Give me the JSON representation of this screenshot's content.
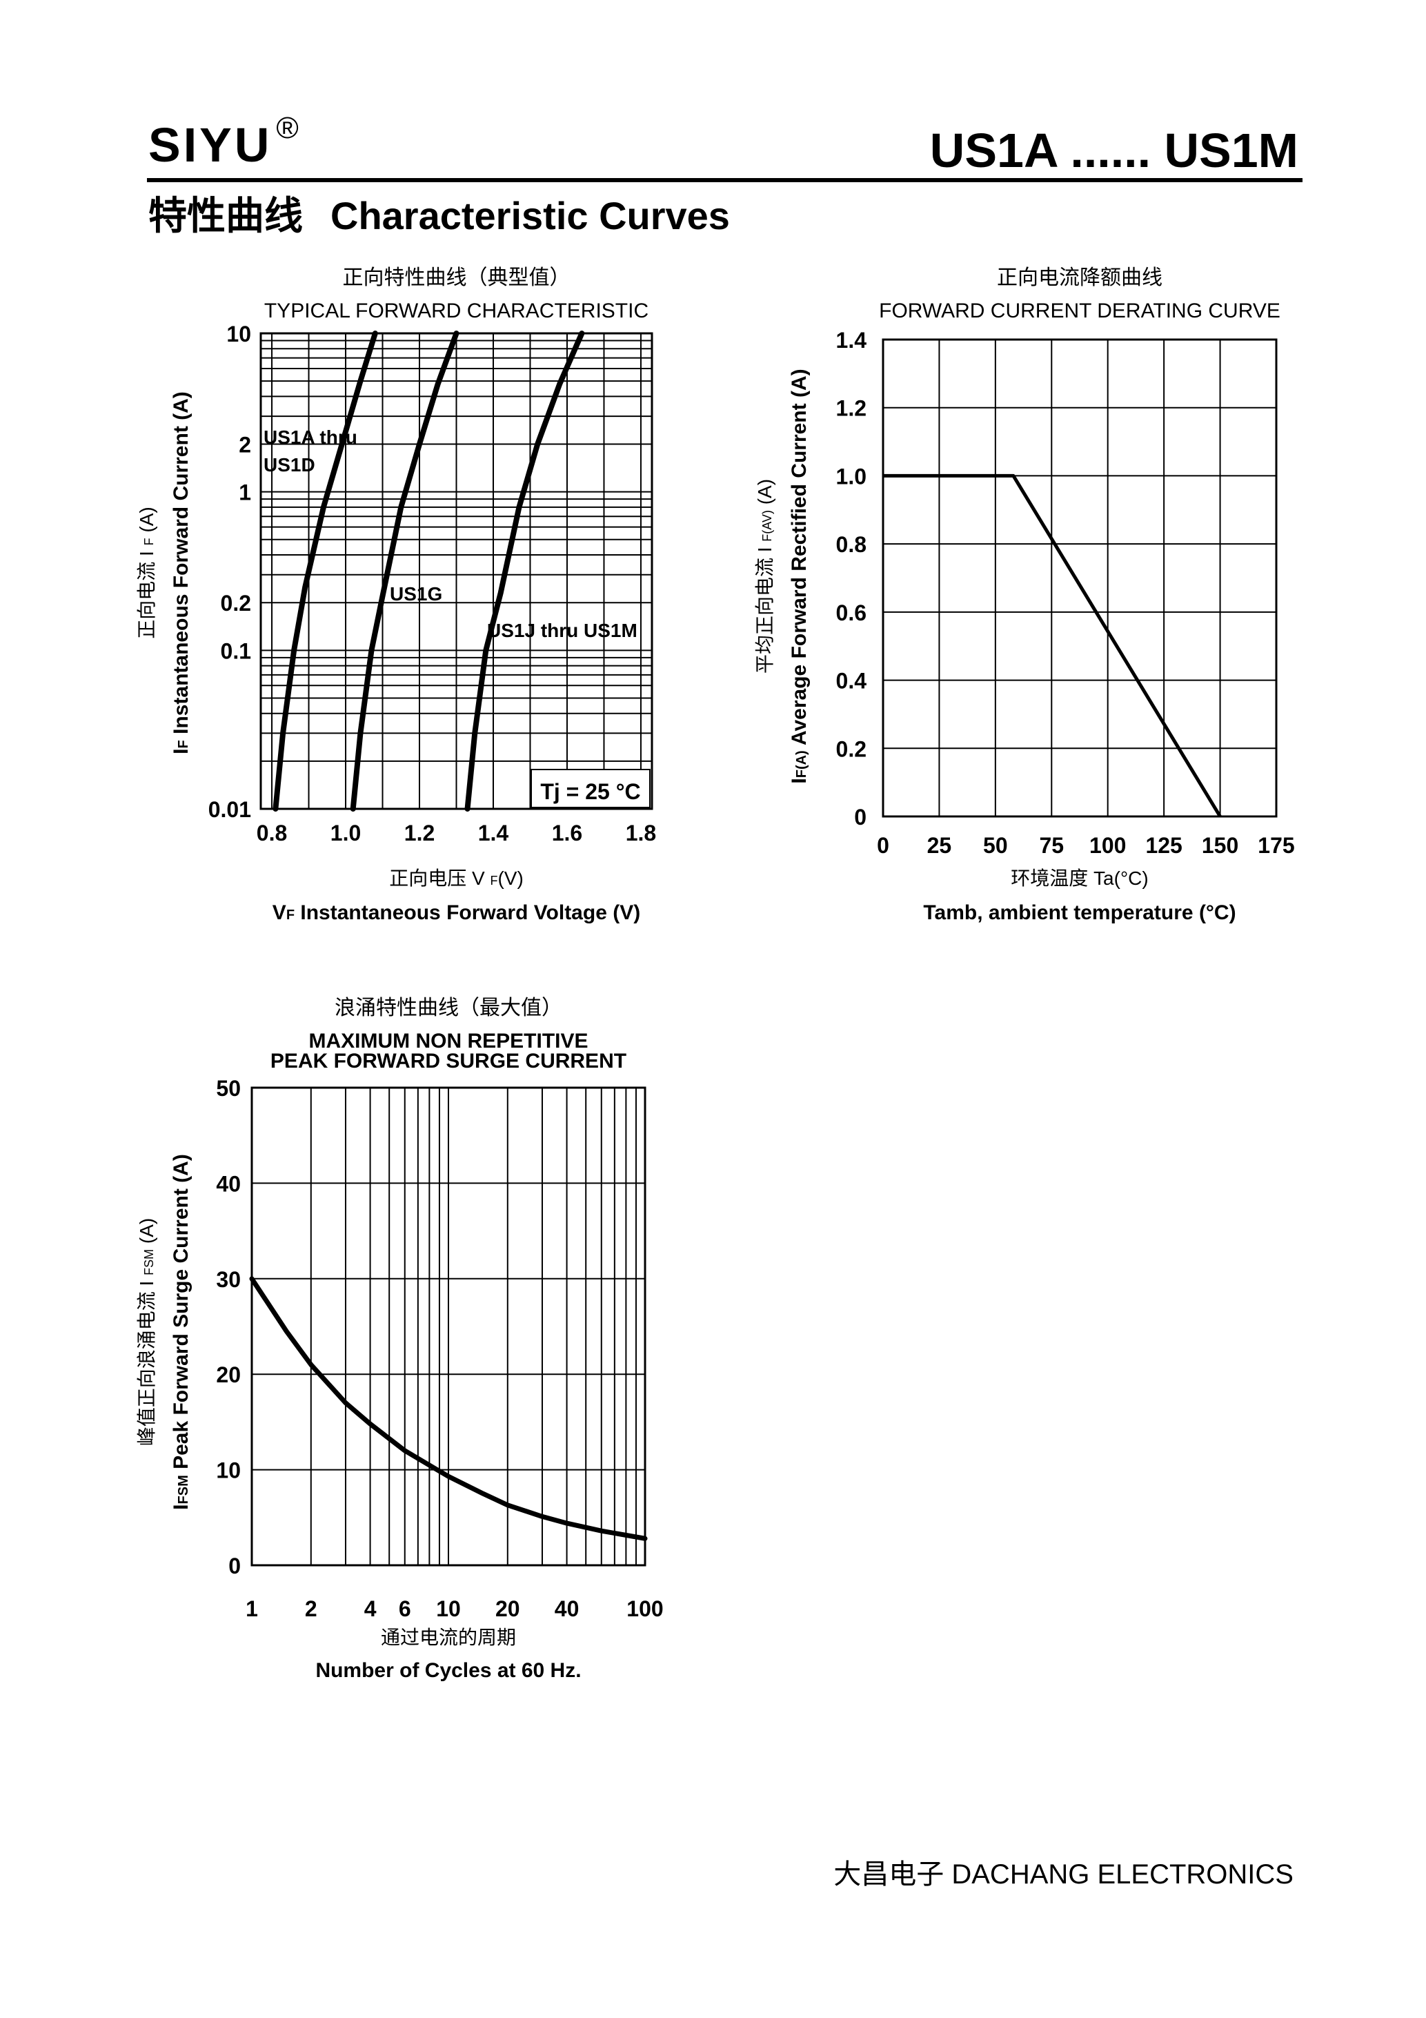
{
  "header": {
    "brand": "SIYU",
    "registered_mark": "®",
    "part_range": "US1A ...... US1M",
    "section_cn": "特性曲线",
    "section_en": "Characteristic Curves"
  },
  "footer": {
    "company": "大昌电子   DACHANG ELECTRONICS"
  },
  "chart_data": [
    {
      "type": "line",
      "title_cn": "正向特性曲线（典型值）",
      "title": "TYPICAL FORWARD CHARACTERISTIC",
      "xlabel_cn": "正向电压  V",
      "xlabel_cn_sub": "F",
      "xlabel_cn_unit": "(V)",
      "xlabel_sym": "V",
      "xlabel_sym_sub": "F",
      "xlabel": "Instantaneous Forward Voltage (V)",
      "ylabel_cn": "正向电流   I",
      "ylabel_cn_sub": "F",
      "ylabel_cn_unit": "(A)",
      "ylabel_sym": "I",
      "ylabel_sym_sub": "F",
      "ylabel": "Instantaneous Forward Current (A)",
      "annotation": "Tj = 25 °C",
      "xlim": [
        0.77,
        1.83
      ],
      "ylim": [
        0.01,
        10
      ],
      "yscale": "log",
      "grid": true,
      "x_ticks": [
        {
          "v": 0.8,
          "label": "0.8"
        },
        {
          "v": 1.0,
          "label": "1.0"
        },
        {
          "v": 1.2,
          "label": "1.2"
        },
        {
          "v": 1.4,
          "label": "1.4"
        },
        {
          "v": 1.6,
          "label": "1.6"
        },
        {
          "v": 1.8,
          "label": "1.8"
        }
      ],
      "y_ticks": [
        {
          "v": 10,
          "label": "10"
        },
        {
          "v": 2,
          "label": "2"
        },
        {
          "v": 1,
          "label": "1"
        },
        {
          "v": 0.2,
          "label": "0.2"
        },
        {
          "v": 0.1,
          "label": "0.1"
        },
        {
          "v": 0.01,
          "label": "0.01"
        }
      ],
      "series": [
        {
          "name": "US1A thru US1D",
          "label_lines": [
            "US1A thru",
            "US1D"
          ],
          "x": [
            0.81,
            0.83,
            0.86,
            0.89,
            0.94,
            0.99,
            1.04,
            1.08
          ],
          "y": [
            0.01,
            0.03,
            0.1,
            0.25,
            0.8,
            2.0,
            5.0,
            10
          ]
        },
        {
          "name": "US1G",
          "label_lines": [
            "US1G"
          ],
          "x": [
            1.02,
            1.04,
            1.07,
            1.1,
            1.15,
            1.2,
            1.25,
            1.3
          ],
          "y": [
            0.01,
            0.03,
            0.1,
            0.22,
            0.8,
            2.0,
            4.8,
            10
          ]
        },
        {
          "name": "US1J thru US1M",
          "label_lines": [
            "US1J thru US1M"
          ],
          "x": [
            1.33,
            1.35,
            1.38,
            1.42,
            1.47,
            1.52,
            1.58,
            1.64
          ],
          "y": [
            0.01,
            0.03,
            0.1,
            0.23,
            0.8,
            2.0,
            4.8,
            10
          ]
        }
      ]
    },
    {
      "type": "line",
      "title_cn": "正向电流降额曲线",
      "title": "FORWARD CURRENT DERATING CURVE",
      "xlabel_cn": "环境温度  Ta(°C)",
      "xlabel": "Tamb, ambient temperature (°C)",
      "ylabel_cn": "平均正向电流   I",
      "ylabel_cn_sub": "F(AV)",
      "ylabel_cn_unit": "(A)",
      "ylabel_sym": "I",
      "ylabel_sym_sub": "F(A)",
      "ylabel": "Average Forward Rectified Current (A)",
      "xlim": [
        0,
        175
      ],
      "ylim": [
        0,
        1.4
      ],
      "grid": true,
      "x_ticks": [
        {
          "v": 0,
          "label": "0"
        },
        {
          "v": 25,
          "label": "25"
        },
        {
          "v": 50,
          "label": "50"
        },
        {
          "v": 75,
          "label": "75"
        },
        {
          "v": 100,
          "label": "100"
        },
        {
          "v": 125,
          "label": "125"
        },
        {
          "v": 150,
          "label": "150"
        },
        {
          "v": 175,
          "label": "175"
        }
      ],
      "y_ticks": [
        {
          "v": 0,
          "label": "0"
        },
        {
          "v": 0.2,
          "label": "0.2"
        },
        {
          "v": 0.4,
          "label": "0.4"
        },
        {
          "v": 0.6,
          "label": "0.6"
        },
        {
          "v": 0.8,
          "label": "0.8"
        },
        {
          "v": 1.0,
          "label": "1.0"
        },
        {
          "v": 1.2,
          "label": "1.2"
        },
        {
          "v": 1.4,
          "label": "1.4"
        }
      ],
      "series": [
        {
          "x": [
            0,
            58,
            150
          ],
          "y": [
            1.0,
            1.0,
            0
          ]
        }
      ]
    },
    {
      "type": "line",
      "title_cn": "浪涌特性曲线（最大值）",
      "title_lines": [
        "MAXIMUM NON REPETITIVE",
        "PEAK FORWARD SURGE CURRENT"
      ],
      "xlabel_cn": "通过电流的周期",
      "xlabel": "Number  of  Cycles at 60 Hz.",
      "ylabel_cn": "峰值正向浪涌电流  I",
      "ylabel_cn_sub": "FSM",
      "ylabel_cn_unit": "(A)",
      "ylabel_sym": "I",
      "ylabel_sym_sub": "FSM",
      "ylabel": "Peak Forward Surge Current (A)",
      "xlim": [
        1,
        100
      ],
      "xscale": "log",
      "ylim": [
        0,
        50
      ],
      "grid": true,
      "x_ticks": [
        {
          "v": 1,
          "label": "1"
        },
        {
          "v": 2,
          "label": "2"
        },
        {
          "v": 4,
          "label": "4"
        },
        {
          "v": 6,
          "label": "6"
        },
        {
          "v": 10,
          "label": "10"
        },
        {
          "v": 20,
          "label": "20"
        },
        {
          "v": 40,
          "label": "40"
        },
        {
          "v": 100,
          "label": "100"
        }
      ],
      "y_ticks": [
        {
          "v": 0,
          "label": "0"
        },
        {
          "v": 10,
          "label": "10"
        },
        {
          "v": 20,
          "label": "20"
        },
        {
          "v": 30,
          "label": "30"
        },
        {
          "v": 40,
          "label": "40"
        },
        {
          "v": 50,
          "label": "50"
        }
      ],
      "series": [
        {
          "x": [
            1,
            1.5,
            2,
            3,
            4,
            6,
            10,
            15,
            20,
            30,
            40,
            60,
            100
          ],
          "y": [
            30,
            24.5,
            21,
            17,
            14.8,
            12,
            9.3,
            7.5,
            6.3,
            5.1,
            4.4,
            3.6,
            2.8
          ]
        }
      ]
    }
  ]
}
